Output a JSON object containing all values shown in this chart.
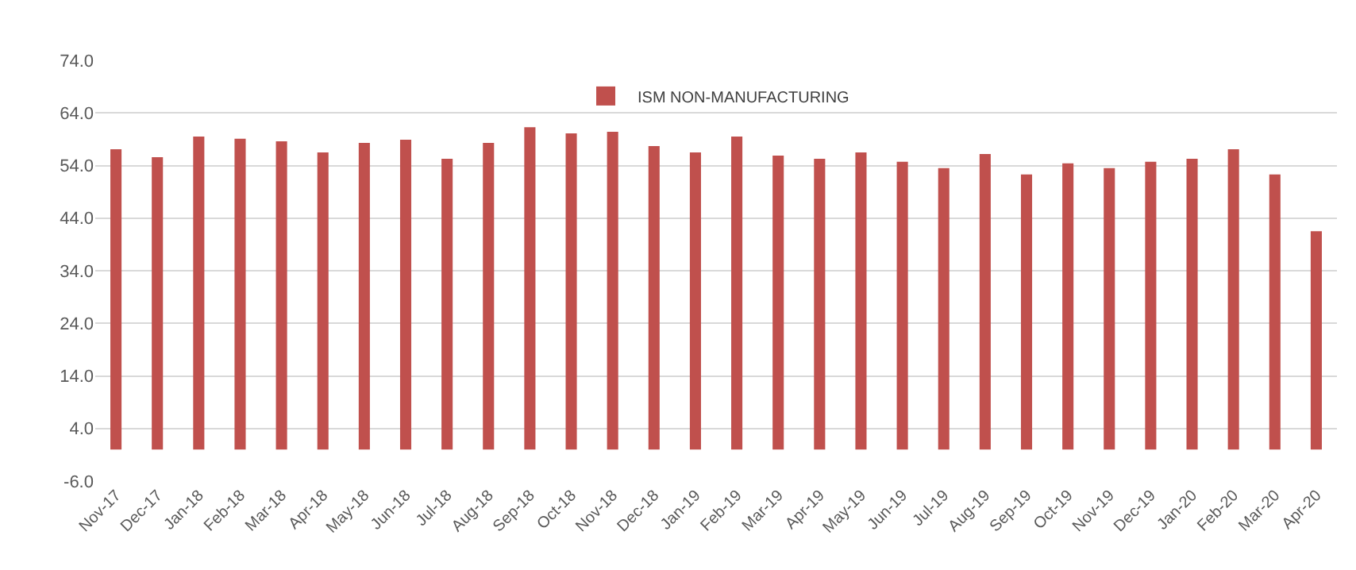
{
  "chart_data": {
    "type": "bar",
    "categories": [
      "Nov-17",
      "Dec-17",
      "Jan-18",
      "Feb-18",
      "Mar-18",
      "Apr-18",
      "May-18",
      "Jun-18",
      "Jul-18",
      "Aug-18",
      "Sep-18",
      "Oct-18",
      "Nov-18",
      "Dec-18",
      "Jan-19",
      "Feb-19",
      "Mar-19",
      "Apr-19",
      "May-19",
      "Jun-19",
      "Jul-19",
      "Aug-19",
      "Sep-19",
      "Oct-19",
      "Nov-19",
      "Dec-19",
      "Jan-20",
      "Feb-20",
      "Mar-20",
      "Apr-20"
    ],
    "series": [
      {
        "name": "ISM NON-MANUFACTURING",
        "color": "#c0504d",
        "values": [
          57.1,
          55.6,
          59.5,
          59.1,
          58.6,
          56.5,
          58.3,
          58.9,
          55.3,
          58.3,
          61.3,
          60.1,
          60.4,
          57.7,
          56.5,
          59.5,
          55.9,
          55.3,
          56.5,
          54.7,
          53.5,
          56.2,
          52.3,
          54.4,
          53.5,
          54.7,
          55.3,
          57.1,
          52.3,
          41.5
        ]
      }
    ],
    "ylim": [
      -6,
      74
    ],
    "yticks": [
      {
        "value": -6,
        "label": "-6.0"
      },
      {
        "value": 4,
        "label": "4.0"
      },
      {
        "value": 14,
        "label": "14.0"
      },
      {
        "value": 24,
        "label": "24.0"
      },
      {
        "value": 34,
        "label": "34.0"
      },
      {
        "value": 44,
        "label": "44.0"
      },
      {
        "value": 54,
        "label": "54.0"
      },
      {
        "value": 64,
        "label": "64.0"
      },
      {
        "value": 74,
        "label": "74.0"
      }
    ],
    "grid": "y",
    "legend": "top"
  }
}
